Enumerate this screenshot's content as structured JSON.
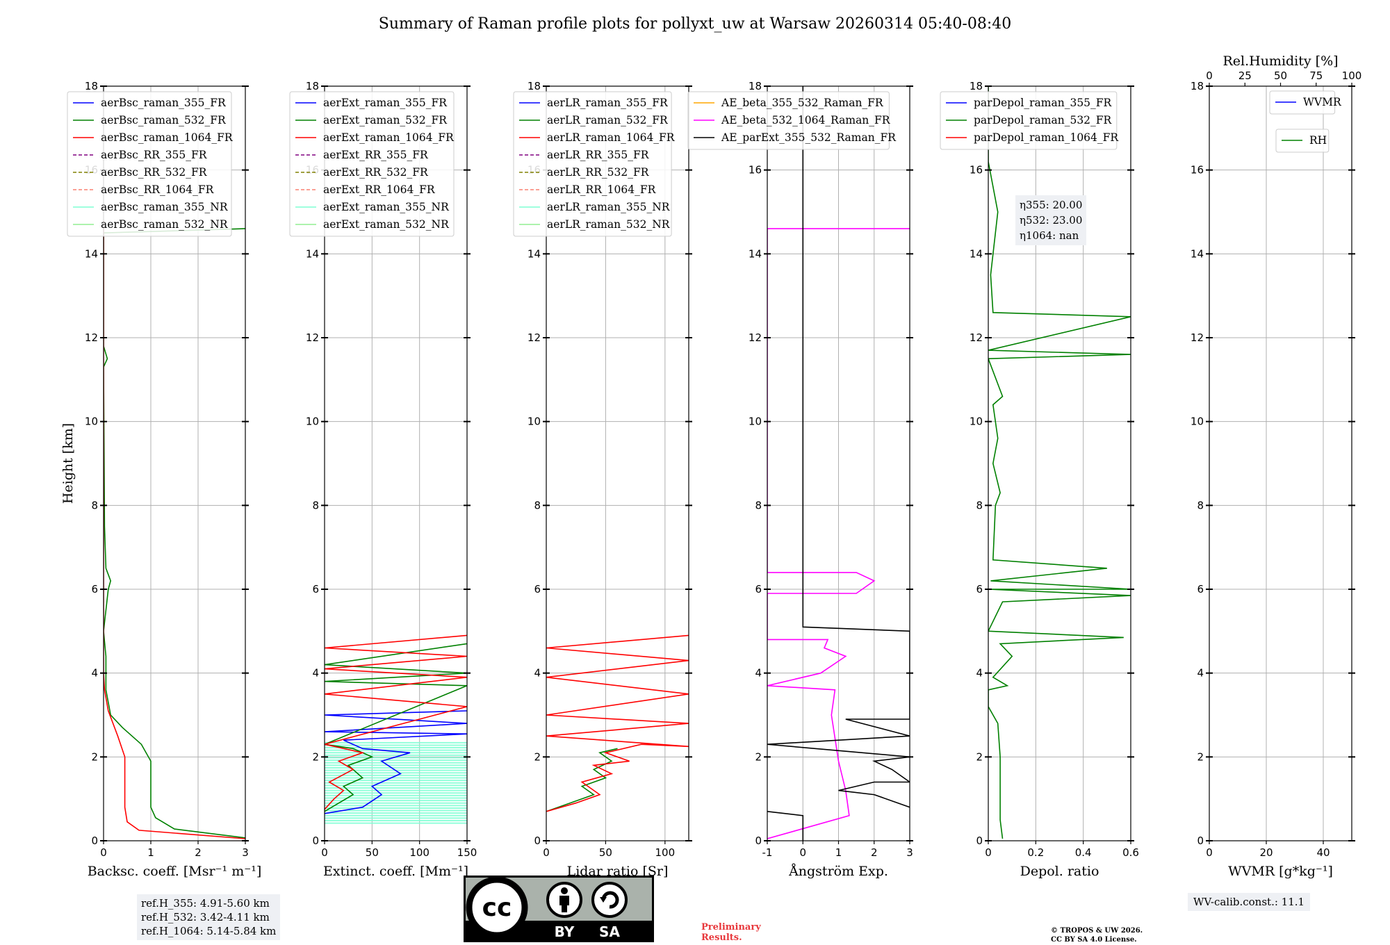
{
  "figure": {
    "title": "Summary of Raman profile plots for pollyxt_uw at Warsaw 20260314 05:40-08:40",
    "ylabel": "Height [km]",
    "ylim": [
      0,
      18
    ],
    "yticks": [
      0,
      2,
      4,
      6,
      8,
      10,
      12,
      14,
      16,
      18
    ],
    "ref_heights": [
      "ref.H_355: 4.91-5.60 km",
      "ref.H_532: 3.42-4.11 km",
      "ref.H_1064: 5.14-5.84 km"
    ],
    "eta": [
      "η355: 20.00",
      "η532: 23.00",
      "η1064: nan"
    ],
    "wv_calib": "WV-calib.const.: 11.1",
    "preliminary": [
      "Preliminary",
      "Results."
    ],
    "copyright": [
      "© TROPOS & UW 2026.",
      "CC BY SA 4.0 License."
    ],
    "license_badge": {
      "symbol": "cc",
      "labels": [
        "BY",
        "SA"
      ]
    }
  },
  "colors": {
    "blue": "#0000ff",
    "green": "#008000",
    "red": "#ff0000",
    "purple": "#800080",
    "olive": "#808000",
    "salmon": "#fa8072",
    "cyan": "#7fffd4",
    "lightgreen": "#90ee90",
    "orange": "#ffa500",
    "magenta": "#ff00ff",
    "black": "#000000"
  },
  "chart_data": [
    {
      "type": "line",
      "xlabel": "Backsc. coeff. [Msr⁻¹ m⁻¹]",
      "xlim": [
        0,
        3
      ],
      "xticks": [
        0,
        1,
        2,
        3
      ],
      "legend": [
        {
          "name": "aerBsc_raman_355_FR",
          "color": "blue",
          "style": "solid"
        },
        {
          "name": "aerBsc_raman_532_FR",
          "color": "green",
          "style": "solid"
        },
        {
          "name": "aerBsc_raman_1064_FR",
          "color": "red",
          "style": "solid"
        },
        {
          "name": "aerBsc_RR_355_FR",
          "color": "purple",
          "style": "dashed"
        },
        {
          "name": "aerBsc_RR_532_FR",
          "color": "olive",
          "style": "dashed"
        },
        {
          "name": "aerBsc_RR_1064_FR",
          "color": "salmon",
          "style": "dashed"
        },
        {
          "name": "aerBsc_raman_355_NR",
          "color": "cyan",
          "style": "solid"
        },
        {
          "name": "aerBsc_raman_532_NR",
          "color": "lightgreen",
          "style": "solid"
        }
      ],
      "series": [
        {
          "name": "aerBsc_raman_532_FR",
          "color": "green",
          "points": [
            [
              3,
              0.07
            ],
            [
              1.5,
              0.28
            ],
            [
              1.1,
              0.55
            ],
            [
              1.0,
              0.8
            ],
            [
              1.0,
              1.9
            ],
            [
              0.8,
              2.3
            ],
            [
              0.4,
              2.7
            ],
            [
              0.15,
              3.0
            ],
            [
              0.05,
              3.6
            ],
            [
              0.05,
              4.4
            ],
            [
              0.0,
              5.0
            ],
            [
              0.1,
              6.0
            ],
            [
              0.15,
              6.2
            ],
            [
              0.05,
              6.5
            ],
            [
              0.02,
              7.5
            ],
            [
              0.0,
              11.3
            ],
            [
              0.08,
              11.5
            ],
            [
              0.0,
              11.8
            ],
            [
              0.0,
              14.5
            ],
            [
              3,
              14.6
            ]
          ]
        },
        {
          "name": "aerBsc_raman_1064_FR",
          "color": "red",
          "points": [
            [
              3,
              0.05
            ],
            [
              0.75,
              0.25
            ],
            [
              0.5,
              0.45
            ],
            [
              0.45,
              0.8
            ],
            [
              0.45,
              2.0
            ],
            [
              0.3,
              2.5
            ],
            [
              0.1,
              3.1
            ],
            [
              0.02,
              3.6
            ],
            [
              0.0,
              4.0
            ],
            [
              0.0,
              14.8
            ]
          ]
        }
      ]
    },
    {
      "type": "line",
      "xlabel": "Extinct. coeff. [Mm⁻¹]",
      "xlim": [
        0,
        150
      ],
      "xticks": [
        0,
        50,
        100,
        150
      ],
      "legend": [
        {
          "name": "aerExt_raman_355_FR",
          "color": "blue",
          "style": "solid"
        },
        {
          "name": "aerExt_raman_532_FR",
          "color": "green",
          "style": "solid"
        },
        {
          "name": "aerExt_raman_1064_FR",
          "color": "red",
          "style": "solid"
        },
        {
          "name": "aerExt_RR_355_FR",
          "color": "purple",
          "style": "dashed"
        },
        {
          "name": "aerExt_RR_532_FR",
          "color": "olive",
          "style": "dashed"
        },
        {
          "name": "aerExt_RR_1064_FR",
          "color": "salmon",
          "style": "dashed"
        },
        {
          "name": "aerExt_raman_355_NR",
          "color": "cyan",
          "style": "solid"
        },
        {
          "name": "aerExt_raman_532_NR",
          "color": "lightgreen",
          "style": "solid"
        }
      ],
      "series": [
        {
          "name": "aerExt_raman_355_FR",
          "color": "blue",
          "points": [
            [
              0,
              0.65
            ],
            [
              40,
              0.8
            ],
            [
              60,
              1.1
            ],
            [
              50,
              1.3
            ],
            [
              80,
              1.6
            ],
            [
              60,
              1.9
            ],
            [
              90,
              2.1
            ],
            [
              40,
              2.2
            ],
            [
              20,
              2.4
            ],
            [
              150,
              2.55
            ],
            [
              0,
              2.6
            ],
            [
              150,
              2.8
            ],
            [
              0,
              3.0
            ],
            [
              150,
              3.1
            ]
          ]
        },
        {
          "name": "aerExt_raman_532_FR",
          "color": "green",
          "points": [
            [
              0,
              0.7
            ],
            [
              15,
              0.9
            ],
            [
              30,
              1.1
            ],
            [
              20,
              1.3
            ],
            [
              40,
              1.5
            ],
            [
              25,
              1.8
            ],
            [
              50,
              2.0
            ],
            [
              30,
              2.2
            ],
            [
              0,
              2.3
            ],
            [
              150,
              3.7
            ],
            [
              0,
              3.8
            ],
            [
              150,
              4.0
            ],
            [
              0,
              4.2
            ],
            [
              150,
              4.7
            ]
          ]
        },
        {
          "name": "aerExt_raman_1064_FR",
          "color": "red",
          "points": [
            [
              0,
              0.75
            ],
            [
              10,
              1.0
            ],
            [
              20,
              1.2
            ],
            [
              5,
              1.4
            ],
            [
              30,
              1.7
            ],
            [
              15,
              1.9
            ],
            [
              40,
              2.1
            ],
            [
              0,
              2.3
            ],
            [
              150,
              3.2
            ],
            [
              0,
              3.5
            ],
            [
              150,
              3.9
            ],
            [
              0,
              4.1
            ],
            [
              150,
              4.4
            ],
            [
              0,
              4.6
            ],
            [
              150,
              4.9
            ]
          ]
        }
      ]
    },
    {
      "type": "line",
      "xlabel": "Lidar ratio [Sr]",
      "xlim": [
        0,
        120
      ],
      "xticks": [
        0,
        50,
        100
      ],
      "legend": [
        {
          "name": "aerLR_raman_355_FR",
          "color": "blue",
          "style": "solid"
        },
        {
          "name": "aerLR_raman_532_FR",
          "color": "green",
          "style": "solid"
        },
        {
          "name": "aerLR_raman_1064_FR",
          "color": "red",
          "style": "solid"
        },
        {
          "name": "aerLR_RR_355_FR",
          "color": "purple",
          "style": "dashed"
        },
        {
          "name": "aerLR_RR_532_FR",
          "color": "olive",
          "style": "dashed"
        },
        {
          "name": "aerLR_RR_1064_FR",
          "color": "salmon",
          "style": "dashed"
        },
        {
          "name": "aerLR_raman_355_NR",
          "color": "cyan",
          "style": "solid"
        },
        {
          "name": "aerLR_raman_532_NR",
          "color": "lightgreen",
          "style": "solid"
        }
      ],
      "series": [
        {
          "name": "aerLR_raman_532_FR",
          "color": "green",
          "points": [
            [
              0,
              0.7
            ],
            [
              20,
              0.9
            ],
            [
              40,
              1.1
            ],
            [
              30,
              1.3
            ],
            [
              50,
              1.5
            ],
            [
              40,
              1.7
            ],
            [
              55,
              1.9
            ],
            [
              45,
              2.1
            ],
            [
              60,
              2.2
            ]
          ]
        },
        {
          "name": "aerLR_raman_1064_FR",
          "color": "red",
          "points": [
            [
              0,
              0.7
            ],
            [
              25,
              0.9
            ],
            [
              45,
              1.1
            ],
            [
              30,
              1.4
            ],
            [
              55,
              1.6
            ],
            [
              40,
              1.8
            ],
            [
              70,
              1.9
            ],
            [
              50,
              2.1
            ],
            [
              80,
              2.3
            ],
            [
              120,
              2.25
            ],
            [
              0,
              2.5
            ],
            [
              120,
              2.8
            ],
            [
              0,
              3.0
            ],
            [
              120,
              3.5
            ],
            [
              0,
              3.9
            ],
            [
              120,
              4.3
            ],
            [
              0,
              4.6
            ],
            [
              120,
              4.9
            ]
          ]
        }
      ]
    },
    {
      "type": "line",
      "xlabel": "Ångström Exp.",
      "xlim": [
        -1,
        3
      ],
      "xticks": [
        -1,
        0,
        1,
        2,
        3
      ],
      "legend": [
        {
          "name": "AE_beta_355_532_Raman_FR",
          "color": "orange",
          "style": "solid"
        },
        {
          "name": "AE_beta_532_1064_Raman_FR",
          "color": "magenta",
          "style": "solid"
        },
        {
          "name": "AE_parExt_355_532_Raman_FR",
          "color": "black",
          "style": "solid"
        }
      ],
      "series": [
        {
          "name": "AE_beta_532_1064_Raman_FR",
          "color": "magenta",
          "points": [
            [
              -1,
              0.05
            ],
            [
              1.3,
              0.6
            ],
            [
              1.2,
              1.2
            ],
            [
              1.0,
              1.9
            ],
            [
              0.8,
              3.0
            ],
            [
              0.9,
              3.6
            ],
            [
              -1,
              3.7
            ],
            [
              0.5,
              4.0
            ],
            [
              1.2,
              4.4
            ],
            [
              0.6,
              4.6
            ],
            [
              0.7,
              4.8
            ],
            [
              -1,
              4.8
            ],
            [
              -1,
              5.9
            ],
            [
              1.5,
              5.9
            ],
            [
              2.0,
              6.2
            ],
            [
              1.5,
              6.4
            ],
            [
              -1,
              6.4
            ],
            [
              -1,
              14.6
            ],
            [
              3,
              14.6
            ]
          ]
        },
        {
          "name": "AE_parExt_355_532_Raman_FR",
          "color": "black",
          "points": [
            [
              -1,
              0.7
            ],
            [
              0.0,
              0.6
            ],
            [
              0.0,
              0.3
            ],
            [
              0.0,
              0.0
            ]
          ]
        },
        {
          "name": "AE_parExt_355_532_Raman_FR_mid",
          "color": "black",
          "points": [
            [
              3,
              0.8
            ],
            [
              2.0,
              1.1
            ],
            [
              1.0,
              1.2
            ],
            [
              2.0,
              1.4
            ],
            [
              3,
              1.4
            ],
            [
              2.5,
              1.7
            ],
            [
              2.0,
              1.9
            ],
            [
              3,
              2.0
            ],
            [
              -1,
              2.3
            ],
            [
              3,
              2.5
            ],
            [
              1.2,
              2.9
            ],
            [
              3,
              2.9
            ],
            [
              3,
              5.0
            ],
            [
              0,
              5.1
            ],
            [
              0,
              18
            ]
          ]
        }
      ]
    },
    {
      "type": "line",
      "xlabel": "Depol. ratio",
      "xlim": [
        0,
        0.6
      ],
      "xticks": [
        0.0,
        0.2,
        0.4,
        0.6
      ],
      "legend": [
        {
          "name": "parDepol_raman_355_FR",
          "color": "blue",
          "style": "solid"
        },
        {
          "name": "parDepol_raman_532_FR",
          "color": "green",
          "style": "solid"
        },
        {
          "name": "parDepol_raman_1064_FR",
          "color": "red",
          "style": "solid"
        }
      ],
      "series": [
        {
          "name": "parDepol_raman_532_FR",
          "color": "green",
          "points": [
            [
              0.06,
              0.05
            ],
            [
              0.05,
              0.5
            ],
            [
              0.05,
              2.0
            ],
            [
              0.04,
              2.8
            ],
            [
              0.0,
              3.2
            ],
            [
              0.0,
              3.6
            ],
            [
              0.08,
              3.7
            ],
            [
              0.02,
              3.9
            ],
            [
              0.1,
              4.4
            ],
            [
              0.05,
              4.7
            ],
            [
              0.57,
              4.85
            ],
            [
              0.0,
              5.0
            ],
            [
              0.06,
              5.7
            ],
            [
              0.6,
              5.85
            ],
            [
              0.0,
              6.0
            ],
            [
              0.6,
              6.0
            ],
            [
              0.01,
              6.2
            ],
            [
              0.5,
              6.5
            ],
            [
              0.02,
              6.7
            ],
            [
              0.03,
              8.0
            ],
            [
              0.05,
              8.3
            ],
            [
              0.02,
              9.0
            ],
            [
              0.04,
              9.6
            ],
            [
              0.02,
              10.4
            ],
            [
              0.06,
              10.6
            ],
            [
              0.0,
              11.5
            ],
            [
              0.6,
              11.6
            ],
            [
              0.0,
              11.7
            ],
            [
              0.6,
              12.5
            ],
            [
              0.02,
              12.6
            ],
            [
              0.01,
              13.5
            ],
            [
              0.04,
              15.0
            ],
            [
              0.0,
              16.2
            ],
            [
              0.0,
              18
            ]
          ]
        }
      ]
    },
    {
      "type": "line",
      "xlabel": "WVMR [g*kg⁻¹]",
      "xlim": [
        0,
        50
      ],
      "xticks": [
        0,
        20,
        40
      ],
      "x2label": "Rel.Humidity [%]",
      "x2lim": [
        0,
        100
      ],
      "x2ticks": [
        0,
        25,
        50,
        75,
        100
      ],
      "legend": [
        {
          "name": "WVMR",
          "color": "blue",
          "style": "solid"
        }
      ],
      "legend2": [
        {
          "name": "RH",
          "color": "green",
          "style": "solid"
        }
      ],
      "series": []
    }
  ]
}
